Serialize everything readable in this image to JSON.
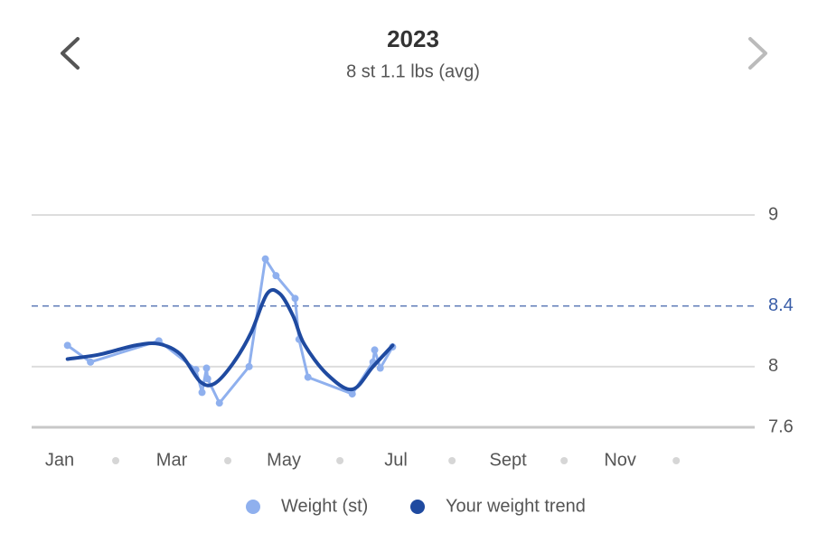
{
  "chart_data": {
    "type": "line",
    "title": "2023",
    "subtitle": "8 st 1.1 lbs (avg)",
    "xlim": [
      -0.5,
      12.4
    ],
    "xticks": [
      {
        "value": 0,
        "label": "Jan"
      },
      {
        "value": 2,
        "label": "Mar"
      },
      {
        "value": 4,
        "label": "May"
      },
      {
        "value": 6,
        "label": "Jul"
      },
      {
        "value": 8,
        "label": "Sept"
      },
      {
        "value": 10,
        "label": "Nov"
      }
    ],
    "xminorticks": [
      1,
      3,
      5,
      7,
      9,
      11
    ],
    "ylim": [
      7.6,
      9
    ],
    "yticks": [
      7.6,
      8,
      9
    ],
    "reference_line": 8.4,
    "reference_color": "#3a5ea8",
    "grid": true,
    "series": [
      {
        "name": "Weight (st)",
        "color": "#8fb0ee",
        "markers": true,
        "smooth": false,
        "x": [
          0.14,
          0.55,
          1.77,
          2.43,
          2.54,
          2.62,
          2.64,
          2.85,
          3.38,
          3.67,
          3.86,
          4.2,
          4.27,
          4.43,
          5.22,
          5.59,
          5.62,
          5.72,
          5.94
        ],
        "values": [
          8.14,
          8.03,
          8.17,
          7.98,
          7.83,
          7.99,
          7.92,
          7.76,
          8.0,
          8.71,
          8.6,
          8.45,
          8.18,
          7.93,
          7.82,
          8.03,
          8.11,
          7.99,
          8.13
        ]
      },
      {
        "name": "Your weight trend",
        "color": "#1f4aa0",
        "markers": false,
        "smooth": true,
        "x": [
          0.14,
          0.71,
          1.35,
          1.77,
          2.16,
          2.51,
          2.77,
          3.09,
          3.41,
          3.7,
          3.93,
          4.17,
          4.36,
          4.77,
          5.22,
          5.59,
          5.94
        ],
        "values": [
          8.05,
          8.08,
          8.14,
          8.15,
          8.08,
          7.9,
          7.89,
          8.02,
          8.22,
          8.48,
          8.48,
          8.33,
          8.15,
          7.95,
          7.85,
          8.0,
          8.14
        ]
      }
    ]
  }
}
